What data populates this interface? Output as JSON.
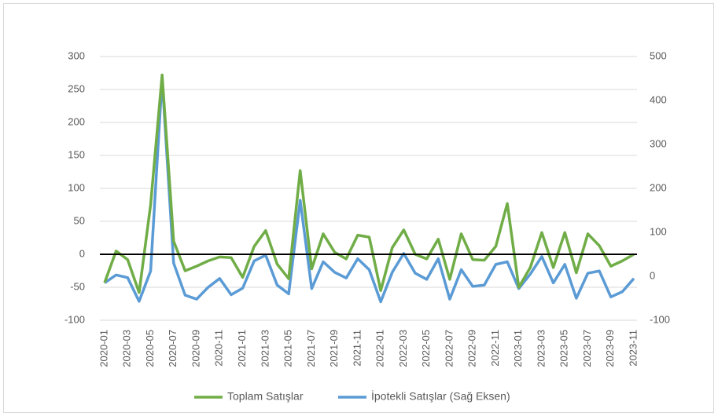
{
  "chart_data": {
    "type": "line",
    "categories": [
      "2020-01",
      null,
      "2020-03",
      null,
      "2020-05",
      null,
      "2020-07",
      null,
      "2020-09",
      null,
      "2020-11",
      null,
      "2021-01",
      null,
      "2021-03",
      null,
      "2021-05",
      null,
      "2021-07",
      null,
      "2021-09",
      null,
      "2021-11",
      null,
      "2022-01",
      null,
      "2022-03",
      null,
      "2022-05",
      null,
      "2022-07",
      null,
      "2022-09",
      null,
      "2022-11",
      null,
      "2023-01",
      null,
      "2023-03",
      null,
      "2023-05",
      null,
      "2023-07",
      null,
      "2023-09",
      null,
      "2023-11"
    ],
    "series": [
      {
        "name": "Toplam Satışlar",
        "color": "#70ad47",
        "values": [
          -43,
          5,
          -8,
          -58,
          75,
          272,
          20,
          -25,
          -18,
          -10,
          -4,
          -5,
          -35,
          12,
          36,
          -15,
          -37,
          127,
          -22,
          31,
          3,
          -7,
          29,
          26,
          -55,
          10,
          37,
          0,
          -7,
          23,
          -38,
          31,
          -8,
          -9,
          12,
          77,
          -50,
          -20,
          33,
          -20,
          33,
          -28,
          31,
          13,
          -18,
          -10,
          0
        ]
      },
      {
        "name": "İpotekli Satışlar (Sağ Eksen)",
        "color": "#5b9bd5",
        "axis": "y2",
        "values": [
          -15,
          3,
          -3,
          -57,
          12,
          450,
          30,
          -43,
          -52,
          -25,
          -5,
          -42,
          -27,
          35,
          48,
          -20,
          -40,
          173,
          -28,
          33,
          9,
          -4,
          40,
          15,
          -58,
          9,
          52,
          7,
          -7,
          40,
          -52,
          15,
          -23,
          -20,
          27,
          33,
          -28,
          5,
          45,
          -15,
          27,
          -50,
          7,
          12,
          -47,
          -35,
          -5
        ]
      }
    ],
    "ylim": [
      -100,
      300
    ],
    "yticks": [
      -100,
      -50,
      0,
      50,
      100,
      150,
      200,
      250,
      300
    ],
    "y2lim": [
      -100,
      500
    ],
    "y2ticks": [
      -100,
      0,
      100,
      200,
      300,
      400,
      500
    ],
    "grid": true,
    "legend": "bottom"
  }
}
